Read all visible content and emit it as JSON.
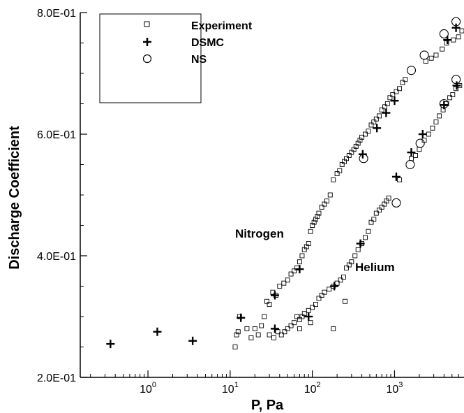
{
  "chart_data": {
    "type": "scatter",
    "title": "",
    "xlabel": "P, Pa",
    "ylabel": "Discharge Coefficient",
    "xscale": "log",
    "xlim": [
      0.15,
      7000
    ],
    "ylim": [
      0.2,
      0.8
    ],
    "x_ticks": [
      {
        "value": 1,
        "base": "10",
        "exp": "0"
      },
      {
        "value": 10,
        "base": "10",
        "exp": "1"
      },
      {
        "value": 100,
        "base": "10",
        "exp": "2"
      },
      {
        "value": 1000,
        "base": "10",
        "exp": "3"
      }
    ],
    "y_ticks": [
      {
        "value": 0.2,
        "label": "2.0E-01"
      },
      {
        "value": 0.4,
        "label": "4.0E-01"
      },
      {
        "value": 0.6,
        "label": "6.0E-01"
      },
      {
        "value": 0.8,
        "label": "8.0E-01"
      }
    ],
    "y_minor_ticks": [
      0.25,
      0.3,
      0.35,
      0.45,
      0.5,
      0.55,
      0.65,
      0.7,
      0.75
    ],
    "grid": false,
    "legend_position": "top-left",
    "annotations": [
      {
        "text": "Nitrogen",
        "x": 35,
        "y": 0.435
      },
      {
        "text": "Helium",
        "x": 250,
        "y": 0.37
      }
    ],
    "series": [
      {
        "name": "Experiment",
        "marker": "square",
        "points": [
          [
            11.5,
            0.25
          ],
          [
            12,
            0.27
          ],
          [
            12.5,
            0.275
          ],
          [
            13,
            0.3
          ],
          [
            16,
            0.28
          ],
          [
            18,
            0.265
          ],
          [
            20,
            0.28
          ],
          [
            22,
            0.27
          ],
          [
            24,
            0.285
          ],
          [
            26,
            0.3
          ],
          [
            28,
            0.325
          ],
          [
            30,
            0.32
          ],
          [
            33,
            0.34
          ],
          [
            36,
            0.335
          ],
          [
            40,
            0.35
          ],
          [
            45,
            0.355
          ],
          [
            50,
            0.36
          ],
          [
            55,
            0.37
          ],
          [
            60,
            0.375
          ],
          [
            65,
            0.38
          ],
          [
            70,
            0.39
          ],
          [
            75,
            0.4
          ],
          [
            80,
            0.41
          ],
          [
            85,
            0.415
          ],
          [
            90,
            0.42
          ],
          [
            95,
            0.44
          ],
          [
            100,
            0.45
          ],
          [
            105,
            0.455
          ],
          [
            110,
            0.46
          ],
          [
            115,
            0.465
          ],
          [
            120,
            0.47
          ],
          [
            130,
            0.48
          ],
          [
            140,
            0.485
          ],
          [
            150,
            0.49
          ],
          [
            165,
            0.5
          ],
          [
            180,
            0.525
          ],
          [
            200,
            0.535
          ],
          [
            215,
            0.54
          ],
          [
            230,
            0.55
          ],
          [
            245,
            0.555
          ],
          [
            260,
            0.56
          ],
          [
            280,
            0.565
          ],
          [
            300,
            0.57
          ],
          [
            320,
            0.575
          ],
          [
            340,
            0.58
          ],
          [
            360,
            0.585
          ],
          [
            380,
            0.59
          ],
          [
            400,
            0.595
          ],
          [
            440,
            0.6
          ],
          [
            480,
            0.605
          ],
          [
            520,
            0.615
          ],
          [
            560,
            0.62
          ],
          [
            600,
            0.625
          ],
          [
            650,
            0.63
          ],
          [
            700,
            0.64
          ],
          [
            760,
            0.645
          ],
          [
            820,
            0.65
          ],
          [
            880,
            0.66
          ],
          [
            950,
            0.665
          ],
          [
            1050,
            0.67
          ],
          [
            1150,
            0.675
          ],
          [
            1250,
            0.685
          ],
          [
            1350,
            0.69
          ],
          [
            2400,
            0.72
          ],
          [
            2800,
            0.725
          ],
          [
            3200,
            0.73
          ],
          [
            3800,
            0.74
          ],
          [
            4300,
            0.75
          ],
          [
            5200,
            0.755
          ],
          [
            6000,
            0.76
          ],
          [
            6600,
            0.77
          ],
          [
            30,
            0.27
          ],
          [
            34,
            0.265
          ],
          [
            38,
            0.275
          ],
          [
            42,
            0.27
          ],
          [
            46,
            0.275
          ],
          [
            50,
            0.28
          ],
          [
            55,
            0.285
          ],
          [
            60,
            0.29
          ],
          [
            65,
            0.3
          ],
          [
            70,
            0.295
          ],
          [
            75,
            0.3
          ],
          [
            80,
            0.305
          ],
          [
            90,
            0.31
          ],
          [
            100,
            0.315
          ],
          [
            110,
            0.32
          ],
          [
            120,
            0.33
          ],
          [
            130,
            0.335
          ],
          [
            140,
            0.34
          ],
          [
            160,
            0.345
          ],
          [
            180,
            0.35
          ],
          [
            200,
            0.355
          ],
          [
            220,
            0.36
          ],
          [
            240,
            0.365
          ],
          [
            260,
            0.38
          ],
          [
            280,
            0.385
          ],
          [
            300,
            0.39
          ],
          [
            330,
            0.4
          ],
          [
            360,
            0.41
          ],
          [
            400,
            0.42
          ],
          [
            440,
            0.43
          ],
          [
            480,
            0.44
          ],
          [
            520,
            0.455
          ],
          [
            560,
            0.46
          ],
          [
            600,
            0.47
          ],
          [
            650,
            0.475
          ],
          [
            700,
            0.48
          ],
          [
            750,
            0.485
          ],
          [
            800,
            0.49
          ],
          [
            850,
            0.495
          ],
          [
            1150,
            0.525
          ],
          [
            1600,
            0.56
          ],
          [
            1800,
            0.565
          ],
          [
            2000,
            0.575
          ],
          [
            2300,
            0.59
          ],
          [
            2600,
            0.6
          ],
          [
            2900,
            0.61
          ],
          [
            3200,
            0.62
          ],
          [
            3500,
            0.63
          ],
          [
            3900,
            0.64
          ],
          [
            4300,
            0.65
          ],
          [
            4700,
            0.66
          ],
          [
            5100,
            0.665
          ],
          [
            5600,
            0.675
          ],
          [
            6200,
            0.68
          ],
          [
            70,
            0.28
          ],
          [
            95,
            0.29
          ],
          [
            250,
            0.325
          ],
          [
            180,
            0.28
          ]
        ]
      },
      {
        "name": "DSMC",
        "marker": "plus",
        "points": [
          [
            0.35,
            0.255
          ],
          [
            1.3,
            0.275
          ],
          [
            3.5,
            0.26
          ],
          [
            13.5,
            0.298
          ],
          [
            35,
            0.28
          ],
          [
            35,
            0.335
          ],
          [
            70,
            0.378
          ],
          [
            90,
            0.3
          ],
          [
            185,
            0.35
          ],
          [
            385,
            0.42
          ],
          [
            410,
            0.567
          ],
          [
            610,
            0.61
          ],
          [
            790,
            0.635
          ],
          [
            1000,
            0.655
          ],
          [
            1050,
            0.53
          ],
          [
            1600,
            0.57
          ],
          [
            2200,
            0.6
          ],
          [
            4000,
            0.648
          ],
          [
            4400,
            0.755
          ],
          [
            5700,
            0.68
          ],
          [
            5600,
            0.775
          ]
        ]
      },
      {
        "name": "NS",
        "marker": "circle",
        "points": [
          [
            420,
            0.56
          ],
          [
            1050,
            0.487
          ],
          [
            1550,
            0.55
          ],
          [
            2050,
            0.585
          ],
          [
            2300,
            0.73
          ],
          [
            1600,
            0.705
          ],
          [
            4000,
            0.765
          ],
          [
            4000,
            0.65
          ],
          [
            5600,
            0.69
          ],
          [
            5600,
            0.785
          ]
        ]
      }
    ]
  }
}
